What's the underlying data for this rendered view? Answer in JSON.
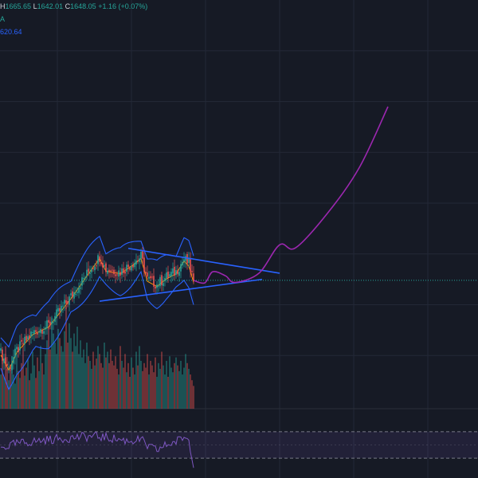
{
  "legend": {
    "high_label": "H",
    "high_value": "1665.65",
    "low_label": "L",
    "low_value": "1642.01",
    "close_label": "C",
    "close_value": "1648.05",
    "change": "+1.16 (+0.07%)",
    "indicator_label": "A",
    "indicator_value": "620.64"
  },
  "colors": {
    "background": "#161a25",
    "grid": "#232836",
    "up": "#26a69a",
    "down": "#ef5350",
    "bollinger": "#2962ff",
    "ma": "#ff9800",
    "trendline": "#2962ff",
    "projection": "#9c27b0",
    "rsi": "#7e57c2"
  },
  "chart_data": {
    "type": "candlestick",
    "price_pane": {
      "ylim": [
        1400,
        2200
      ],
      "n_bars": 122,
      "close_profile": [
        [
          0,
          1505
        ],
        [
          5,
          1475
        ],
        [
          10,
          1510
        ],
        [
          20,
          1545
        ],
        [
          30,
          1560
        ],
        [
          40,
          1600
        ],
        [
          45,
          1620
        ],
        [
          55,
          1665
        ],
        [
          62,
          1695
        ],
        [
          66,
          1670
        ],
        [
          75,
          1665
        ],
        [
          82,
          1680
        ],
        [
          88,
          1695
        ],
        [
          92,
          1650
        ],
        [
          98,
          1640
        ],
        [
          104,
          1655
        ],
        [
          110,
          1665
        ],
        [
          115,
          1690
        ],
        [
          118,
          1680
        ],
        [
          121,
          1648
        ]
      ],
      "current_price": 1648,
      "bollinger_band_width": 30,
      "trendlines": [
        {
          "name": "upper",
          "points": [
            [
              80,
              1711
            ],
            [
              175,
              1662
            ]
          ]
        },
        {
          "name": "lower",
          "points": [
            [
              62,
              1607
            ],
            [
              164,
              1650
            ]
          ]
        }
      ],
      "projection": [
        [
          121,
          1648
        ],
        [
          128,
          1643
        ],
        [
          133,
          1665
        ],
        [
          141,
          1657
        ],
        [
          147,
          1644
        ],
        [
          162,
          1662
        ],
        [
          175,
          1718
        ],
        [
          185,
          1712
        ],
        [
          205,
          1780
        ],
        [
          225,
          1870
        ],
        [
          243,
          1990
        ]
      ]
    },
    "volume_pane": {
      "ylim": [
        0,
        100
      ],
      "values": [
        30,
        42,
        28,
        55,
        35,
        25,
        38,
        46,
        30,
        22,
        48,
        33,
        27,
        40,
        52,
        29,
        36,
        44,
        25,
        31,
        50,
        38,
        27,
        45,
        33,
        55,
        40,
        30,
        48,
        60,
        72,
        52,
        80,
        66,
        58,
        48,
        70,
        62,
        55,
        50,
        68,
        90,
        58,
        75,
        62,
        50,
        66,
        55,
        72,
        48,
        60,
        45,
        52,
        40,
        58,
        46,
        42,
        35,
        50,
        38,
        44,
        55,
        48,
        40,
        36,
        58,
        45,
        50,
        40,
        52,
        42,
        38,
        46,
        35,
        30,
        55,
        42,
        36,
        48,
        32,
        40,
        28,
        45,
        36,
        30,
        50,
        38,
        55,
        42,
        33,
        40,
        36,
        48,
        30,
        42,
        38,
        32,
        45,
        28,
        40,
        35,
        50,
        38,
        30,
        42,
        28,
        46,
        36,
        32,
        40,
        45,
        38,
        33,
        42,
        30,
        36,
        48,
        40,
        35,
        30,
        25,
        20
      ]
    },
    "rsi_pane": {
      "ylim": [
        0,
        100
      ],
      "levels": [
        30,
        70
      ],
      "profile": [
        [
          0,
          45
        ],
        [
          10,
          52
        ],
        [
          20,
          55
        ],
        [
          30,
          58
        ],
        [
          40,
          60
        ],
        [
          50,
          62
        ],
        [
          60,
          63
        ],
        [
          70,
          60
        ],
        [
          80,
          56
        ],
        [
          88,
          58
        ],
        [
          92,
          48
        ],
        [
          98,
          42
        ],
        [
          104,
          50
        ],
        [
          110,
          55
        ],
        [
          115,
          62
        ],
        [
          118,
          58
        ],
        [
          121,
          22
        ]
      ]
    }
  }
}
